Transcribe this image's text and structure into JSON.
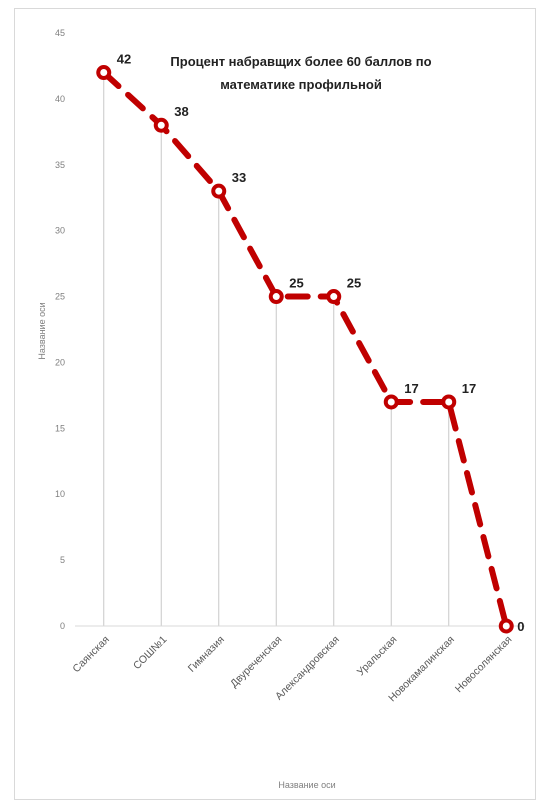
{
  "chart_data": {
    "type": "line",
    "title_lines": [
      "Процент набравщих  более 60 баллов по",
      "математике профильной"
    ],
    "xlabel": "Название оси",
    "ylabel": "Название оси",
    "ylim": [
      0,
      45
    ],
    "yticks": [
      0,
      5,
      10,
      15,
      20,
      25,
      30,
      35,
      40,
      45
    ],
    "categories": [
      "Саянская",
      "СОШ№1",
      "Гимназия",
      "Двуреченская",
      "Александровская",
      "Уральская",
      "Новокамалинская",
      "Новосолянская"
    ],
    "series": [
      {
        "values": [
          42,
          38,
          33,
          25,
          25,
          17,
          17,
          0
        ]
      }
    ],
    "data_labels": [
      "42",
      "38",
      "33",
      "25",
      "25",
      "17",
      "17",
      "0"
    ],
    "line_color": "#c00000",
    "drop_line_color": "#c8c8c8",
    "grid": false
  }
}
